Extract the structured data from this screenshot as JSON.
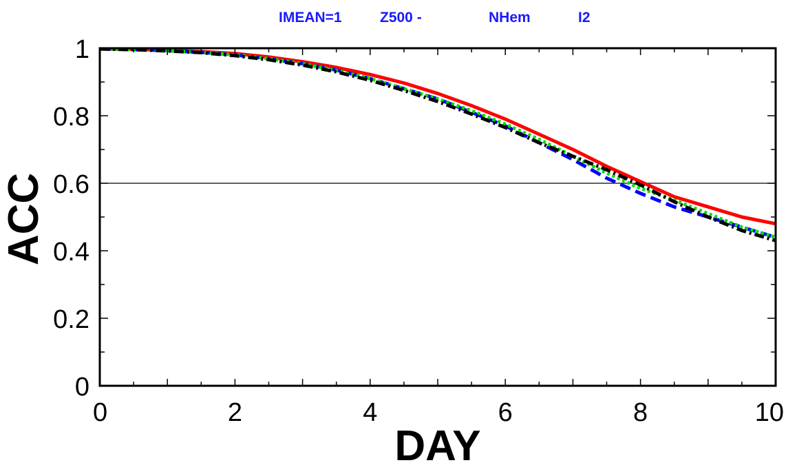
{
  "chart_data": {
    "type": "line",
    "title_parts": [
      "IMEAN=1",
      "Z500 -",
      "NHem",
      "I2"
    ],
    "xlabel": "DAY",
    "ylabel": "ACC",
    "xlim": [
      0,
      10
    ],
    "ylim": [
      0,
      1
    ],
    "xticks": [
      0,
      2,
      4,
      6,
      8,
      10
    ],
    "yticks": [
      0,
      0.2,
      0.4,
      0.6,
      0.8,
      1
    ],
    "yticklabels": [
      "0",
      "0.2",
      "0.4",
      "0.6",
      "0.8",
      "1"
    ],
    "grid": false,
    "reference_line": 0.6,
    "x": [
      0,
      0.5,
      1,
      1.5,
      2,
      2.5,
      3,
      3.5,
      4,
      4.5,
      5,
      5.5,
      6,
      6.5,
      7,
      7.5,
      8,
      8.5,
      9,
      9.5,
      10
    ],
    "series": [
      {
        "color": "#ff0000",
        "style": "solid",
        "values": [
          0.998,
          0.997,
          0.994,
          0.99,
          0.984,
          0.974,
          0.96,
          0.943,
          0.922,
          0.897,
          0.866,
          0.83,
          0.79,
          0.745,
          0.7,
          0.65,
          0.605,
          0.56,
          0.53,
          0.5,
          0.48
        ]
      },
      {
        "color": "#0000ff",
        "style": "dashed",
        "values": [
          0.998,
          0.996,
          0.993,
          0.988,
          0.98,
          0.969,
          0.954,
          0.935,
          0.91,
          0.88,
          0.85,
          0.81,
          0.77,
          0.72,
          0.67,
          0.615,
          0.57,
          0.53,
          0.5,
          0.47,
          0.44
        ]
      },
      {
        "color": "#00dd00",
        "style": "dotted",
        "values": [
          0.998,
          0.996,
          0.993,
          0.988,
          0.98,
          0.969,
          0.954,
          0.934,
          0.91,
          0.88,
          0.85,
          0.815,
          0.775,
          0.73,
          0.68,
          0.63,
          0.585,
          0.55,
          0.51,
          0.47,
          0.44
        ]
      },
      {
        "color": "#000000",
        "style": "dashdot",
        "values": [
          0.998,
          0.996,
          0.992,
          0.987,
          0.978,
          0.966,
          0.95,
          0.93,
          0.905,
          0.875,
          0.842,
          0.805,
          0.765,
          0.72,
          0.68,
          0.64,
          0.595,
          0.545,
          0.5,
          0.46,
          0.43
        ]
      }
    ]
  }
}
